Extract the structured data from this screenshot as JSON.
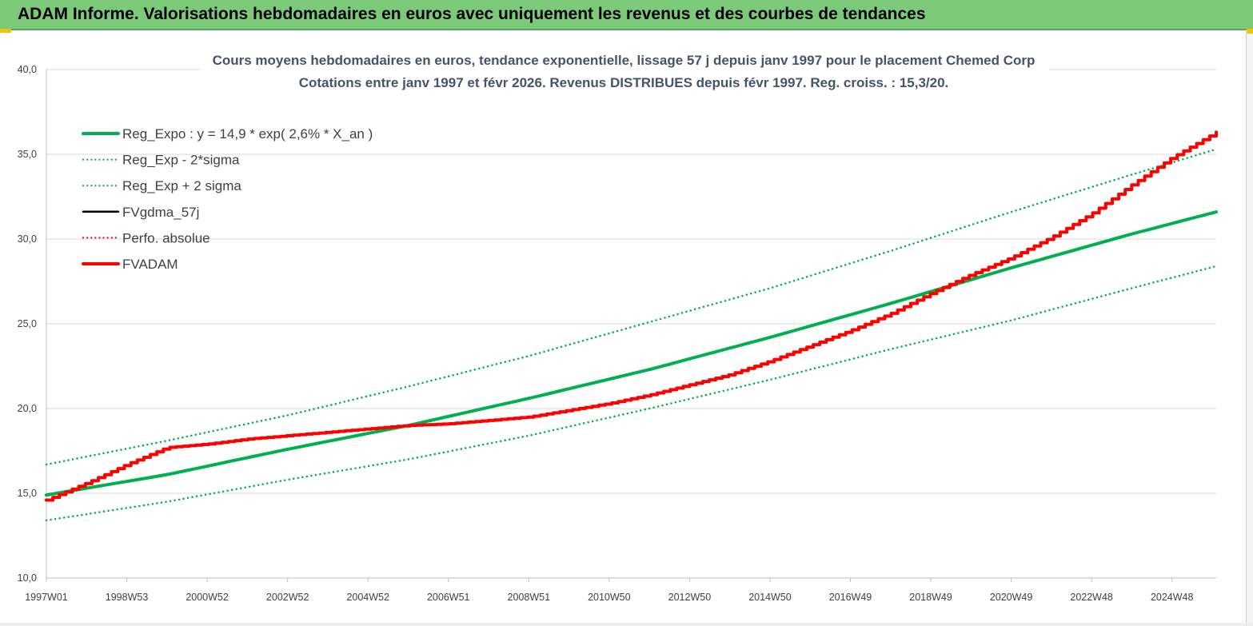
{
  "banner": {
    "title": "ADAM Informe. Valorisations hebdomadaires en euros avec uniquement les revenus et des courbes de tendances"
  },
  "chart_data": {
    "type": "line",
    "title": "Cours moyens hebdomadaires en euros, tendance exponentielle, lissage 57 j depuis janv 1997 pour le placement Chemed Corp",
    "subtitle": "Cotations entre janv 1997 et févr 2026. Revenus DISTRIBUES depuis févr 1997. Reg. croiss. : 15,3/20.",
    "ylim": [
      10,
      40
    ],
    "y_ticks": [
      "10,0",
      "15,0",
      "20,0",
      "25,0",
      "30,0",
      "35,0",
      "40,0"
    ],
    "x_ticks": [
      "1997W01",
      "1998W53",
      "2000W52",
      "2002W52",
      "2004W52",
      "2006W51",
      "2008W51",
      "2010W50",
      "2012W50",
      "2014W50",
      "2016W49",
      "2018W49",
      "2020W49",
      "2022W48",
      "2024W48"
    ],
    "x_range_years": [
      1997.0,
      2026.1
    ],
    "grid": "horizontal",
    "legend_position": "top-left",
    "series": [
      {
        "name": "Reg_Expo : y = 14,9 * exp( 2,6% *  X_an )",
        "color": "#00b050",
        "style": "solid-thick",
        "x": [
          1997,
          2000,
          2003,
          2006,
          2009,
          2012,
          2015,
          2018,
          2021,
          2024,
          2026.1
        ],
        "values": [
          14.9,
          16.1,
          17.6,
          19.0,
          20.6,
          22.3,
          24.2,
          26.2,
          28.3,
          30.3,
          31.6
        ]
      },
      {
        "name": "Reg_Exp - 2*sigma",
        "color": "#00b050",
        "style": "dotted",
        "x": [
          1997,
          2000,
          2003,
          2006,
          2009,
          2012,
          2015,
          2018,
          2021,
          2024,
          2026.1
        ],
        "values": [
          13.4,
          14.5,
          15.8,
          17.0,
          18.4,
          20.0,
          21.7,
          23.5,
          25.2,
          27.1,
          28.4
        ]
      },
      {
        "name": "Reg_Exp + 2 sigma",
        "color": "#00b050",
        "style": "dotted",
        "x": [
          1997,
          2000,
          2003,
          2006,
          2009,
          2012,
          2015,
          2018,
          2021,
          2024,
          2026.1
        ],
        "values": [
          16.7,
          18.1,
          19.6,
          21.3,
          23.1,
          25.1,
          27.1,
          29.3,
          31.6,
          33.8,
          35.3
        ]
      },
      {
        "name": "FVgdma_57j",
        "color": "#000000",
        "style": "solid",
        "x": [],
        "values": []
      },
      {
        "name": "Perfo. absolue",
        "color": "#ff0000",
        "style": "dotted",
        "x": [],
        "values": []
      },
      {
        "name": "FVADAM",
        "color": "#ff0000",
        "style": "solid-thick",
        "x": [
          1997,
          1998,
          1999,
          2000,
          2001,
          2002,
          2003,
          2004,
          2005,
          2006,
          2007,
          2008,
          2009,
          2010,
          2011,
          2012,
          2013,
          2014,
          2015,
          2016,
          2017,
          2018,
          2019,
          2020,
          2021,
          2022,
          2023,
          2024,
          2025,
          2026.1
        ],
        "values": [
          14.6,
          15.6,
          16.7,
          17.7,
          17.9,
          18.2,
          18.4,
          18.6,
          18.8,
          19.0,
          19.1,
          19.3,
          19.5,
          19.9,
          20.3,
          20.8,
          21.4,
          22.0,
          22.8,
          23.7,
          24.6,
          25.6,
          26.8,
          27.9,
          28.9,
          30.1,
          31.5,
          33.2,
          34.8,
          36.3
        ]
      }
    ]
  }
}
